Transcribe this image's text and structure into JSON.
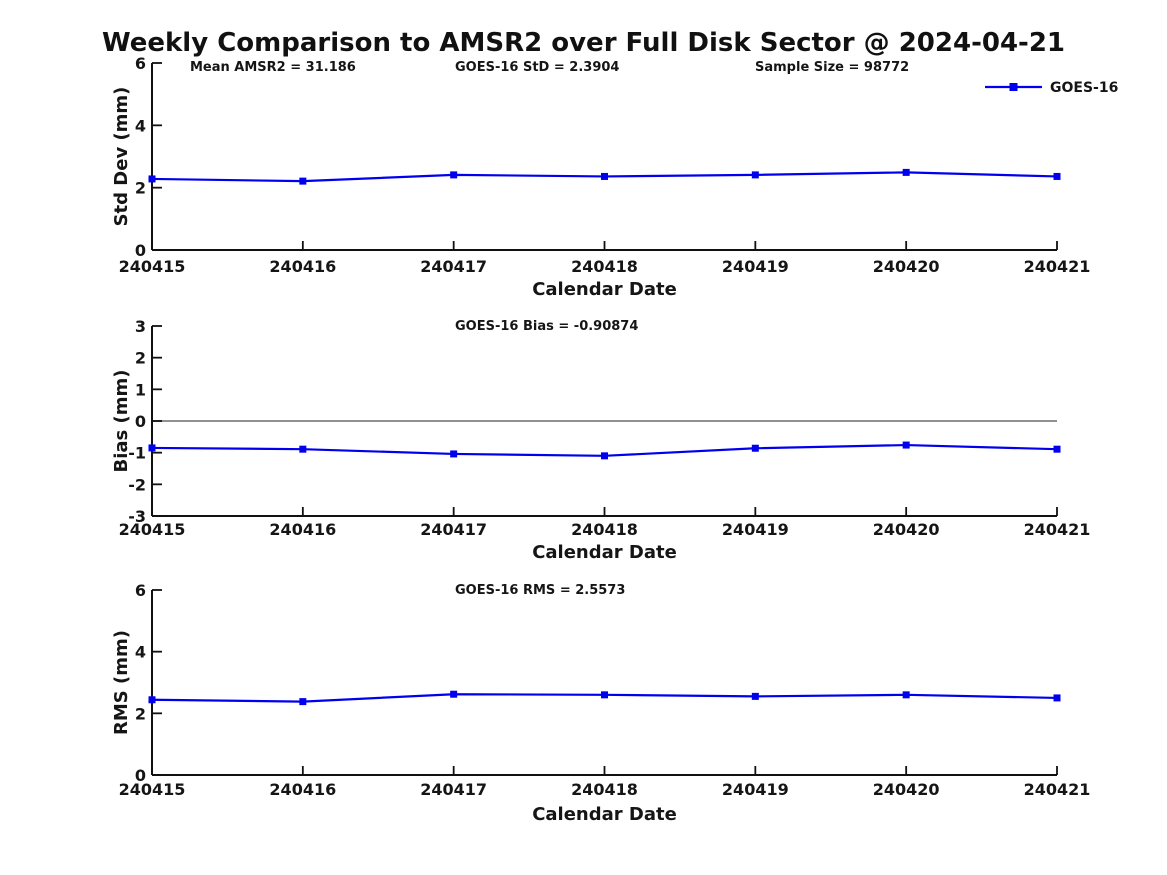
{
  "title": "Weekly Comparison to AMSR2 over Full Disk Sector @ 2024-04-21",
  "colors": {
    "line": "#0000ee",
    "zero_line": "#808080",
    "axis": "#111111",
    "text": "#151515"
  },
  "legend": {
    "label": "GOES-16"
  },
  "chart_data": [
    {
      "name": "stddev",
      "type": "line",
      "ylabel": "Std Dev (mm)",
      "xlabel": "Calendar Date",
      "ylim": [
        0,
        6
      ],
      "yticks": [
        0,
        2,
        4,
        6
      ],
      "grid": false,
      "legend_position": "upper right outside plot",
      "categories": [
        "240415",
        "240416",
        "240417",
        "240418",
        "240419",
        "240420",
        "240421"
      ],
      "series": [
        {
          "name": "GOES-16",
          "marker": "square",
          "values": [
            2.28,
            2.21,
            2.41,
            2.36,
            2.41,
            2.49,
            2.36
          ]
        }
      ],
      "annotations": [
        "Mean AMSR2 = 31.186",
        "GOES-16 StD = 2.3904",
        "Sample Size = 98772"
      ],
      "zero_line": false,
      "show_legend": true
    },
    {
      "name": "bias",
      "type": "line",
      "ylabel": "Bias (mm)",
      "xlabel": "Calendar Date",
      "ylim": [
        -3,
        3
      ],
      "yticks": [
        -3,
        -2,
        -1,
        0,
        1,
        2,
        3
      ],
      "grid": false,
      "categories": [
        "240415",
        "240416",
        "240417",
        "240418",
        "240419",
        "240420",
        "240421"
      ],
      "series": [
        {
          "name": "GOES-16",
          "marker": "square",
          "values": [
            -0.85,
            -0.89,
            -1.04,
            -1.1,
            -0.86,
            -0.76,
            -0.89
          ]
        }
      ],
      "annotations": [
        "GOES-16 Bias  = -0.90874"
      ],
      "zero_line": true,
      "show_legend": false
    },
    {
      "name": "rms",
      "type": "line",
      "ylabel": "RMS (mm)",
      "xlabel": "Calendar Date",
      "ylim": [
        0,
        6
      ],
      "yticks": [
        0,
        2,
        4,
        6
      ],
      "grid": false,
      "categories": [
        "240415",
        "240416",
        "240417",
        "240418",
        "240419",
        "240420",
        "240421"
      ],
      "series": [
        {
          "name": "GOES-16",
          "marker": "square",
          "values": [
            2.44,
            2.38,
            2.62,
            2.6,
            2.55,
            2.6,
            2.5
          ]
        }
      ],
      "annotations": [
        "GOES-16 RMS = 2.5573"
      ],
      "zero_line": false,
      "show_legend": false
    }
  ]
}
